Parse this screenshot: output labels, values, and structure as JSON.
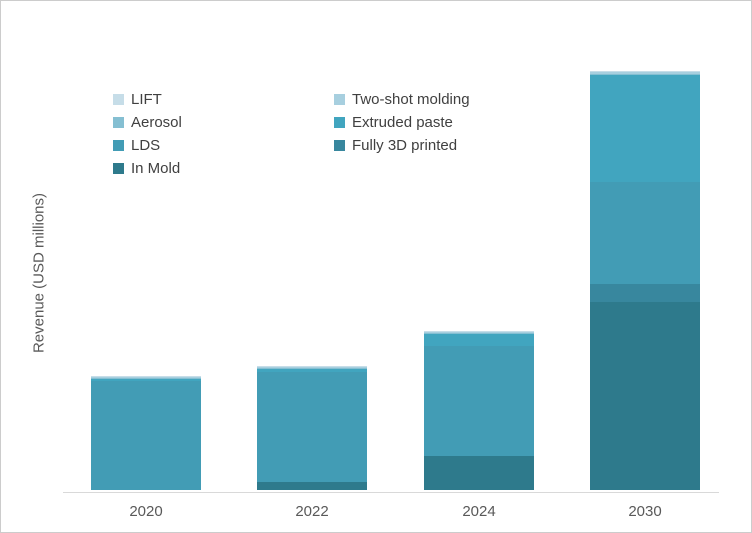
{
  "chart_data": {
    "type": "bar",
    "stacked": true,
    "title": "",
    "xlabel": "",
    "ylabel": "Revenue (USD millions)",
    "categories": [
      "2020",
      "2022",
      "2024",
      "2030"
    ],
    "value_units": "relative (y axis shows no numeric scale; values estimated from bar pixel heights)",
    "stack_order": "series listed bottom-to-top",
    "series": [
      {
        "name": "In Mold",
        "color": "#2e7a8c",
        "values": [
          0,
          8,
          34,
          188
        ]
      },
      {
        "name": "Fully 3D printed",
        "color": "#38879e",
        "values": [
          0,
          0,
          0,
          18
        ]
      },
      {
        "name": "LDS",
        "color": "#429cb5",
        "values": [
          109,
          110,
          110,
          102
        ]
      },
      {
        "name": "Extruded paste",
        "color": "#41a5bf",
        "values": [
          2,
          3,
          12,
          107
        ]
      },
      {
        "name": "Aerosol",
        "color": "#85bfd2",
        "values": [
          1,
          1,
          1,
          1
        ]
      },
      {
        "name": "Two-shot molding",
        "color": "#a7cfdf",
        "values": [
          1,
          1,
          1,
          2
        ]
      },
      {
        "name": "LIFT",
        "color": "#c6dde8",
        "values": [
          1,
          1,
          1,
          1
        ]
      }
    ],
    "legend": {
      "position": "top-left",
      "columns": [
        [
          "LIFT",
          "Aerosol",
          "LDS",
          "In Mold"
        ],
        [
          "Two-shot molding",
          "Extruded paste",
          "Fully 3D printed"
        ]
      ]
    },
    "axes": {
      "y_tick_labels_visible": false,
      "gridlines": false,
      "axis_line_color": "#d9d9d9"
    }
  },
  "colors": {
    "axis_text": "#595959",
    "legend_text": "#404040",
    "chart_border": "#cccccc",
    "background": "#ffffff"
  }
}
